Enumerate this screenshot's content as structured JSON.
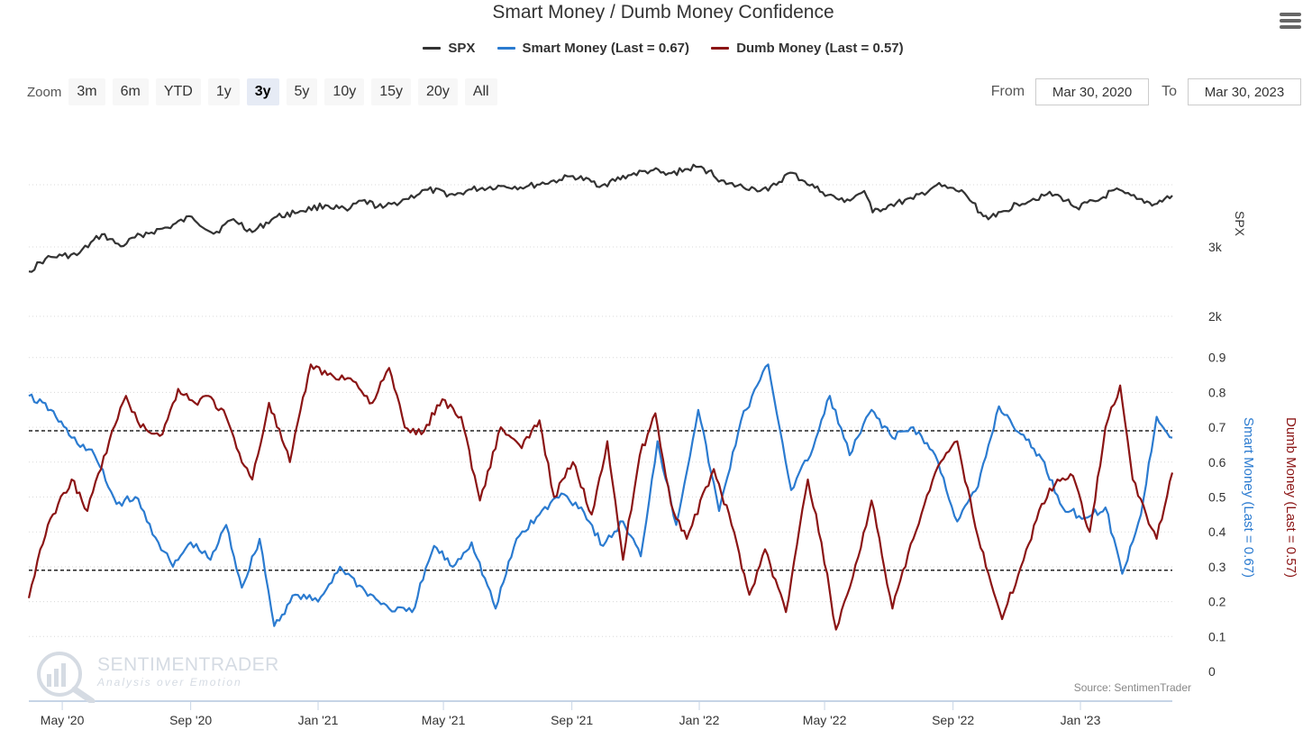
{
  "title": "Smart Money / Dumb Money Confidence",
  "legend": [
    {
      "label": "SPX",
      "color": "#333333"
    },
    {
      "label": "Smart Money (Last = 0.67)",
      "color": "#2B7BD0"
    },
    {
      "label": "Dumb Money (Last = 0.57)",
      "color": "#8B1515"
    }
  ],
  "menu": {
    "icon": "hamburger-menu-icon"
  },
  "zoom": {
    "label": "Zoom",
    "buttons": [
      "3m",
      "6m",
      "YTD",
      "1y",
      "3y",
      "5y",
      "10y",
      "15y",
      "20y",
      "All"
    ],
    "active": "3y"
  },
  "range": {
    "from_label": "From",
    "from_value": "Mar 30, 2020",
    "to_label": "To",
    "to_value": "Mar 30, 2023"
  },
  "watermark": {
    "brand": "SENTIMENTRADER",
    "tagline": "Analysis over Emotion",
    "icon": "magnifier-chart-icon"
  },
  "source": "Source: SentimenTrader",
  "chart_data": {
    "type": "line",
    "x_range": [
      "2020-03-30",
      "2023-03-30"
    ],
    "x_ticks": [
      "May '20",
      "Sep '20",
      "Jan '21",
      "May '21",
      "Sep '21",
      "Jan '22",
      "May '22",
      "Sep '22",
      "Jan '23"
    ],
    "spx_axis": {
      "label": "SPX",
      "ticks": [
        "2k",
        "3k"
      ],
      "tick_values": [
        2000,
        3000
      ],
      "scale": "log"
    },
    "confidence_axes": {
      "ticks": [
        "0",
        "0.1",
        "0.2",
        "0.3",
        "0.4",
        "0.5",
        "0.6",
        "0.7",
        "0.8",
        "0.9"
      ],
      "range": [
        0,
        1
      ],
      "smart_label": "Smart Money (Last = 0.67)",
      "dumb_label": "Dumb Money (Last = 0.57)"
    },
    "reference_lines": [
      0.69,
      0.29
    ],
    "series": [
      {
        "name": "SPX",
        "color": "#333333",
        "axis": "spx",
        "points": [
          [
            "2020-03-30",
            2600
          ],
          [
            "2020-04-15",
            2800
          ],
          [
            "2020-05-01",
            2850
          ],
          [
            "2020-05-15",
            2860
          ],
          [
            "2020-06-08",
            3230
          ],
          [
            "2020-06-26",
            3010
          ],
          [
            "2020-07-15",
            3220
          ],
          [
            "2020-08-10",
            3360
          ],
          [
            "2020-09-02",
            3580
          ],
          [
            "2020-09-23",
            3240
          ],
          [
            "2020-10-12",
            3530
          ],
          [
            "2020-10-30",
            3270
          ],
          [
            "2020-11-20",
            3560
          ],
          [
            "2020-12-15",
            3700
          ],
          [
            "2021-01-08",
            3830
          ],
          [
            "2021-01-29",
            3710
          ],
          [
            "2021-02-12",
            3930
          ],
          [
            "2021-03-04",
            3770
          ],
          [
            "2021-03-26",
            3970
          ],
          [
            "2021-04-16",
            4190
          ],
          [
            "2021-05-12",
            4060
          ],
          [
            "2021-05-28",
            4200
          ],
          [
            "2021-06-25",
            4280
          ],
          [
            "2021-07-19",
            4260
          ],
          [
            "2021-08-20",
            4440
          ],
          [
            "2021-09-02",
            4540
          ],
          [
            "2021-09-30",
            4300
          ],
          [
            "2021-10-25",
            4560
          ],
          [
            "2021-11-18",
            4700
          ],
          [
            "2021-11-30",
            4570
          ],
          [
            "2021-12-29",
            4790
          ],
          [
            "2022-01-10",
            4670
          ],
          [
            "2022-01-27",
            4330
          ],
          [
            "2022-02-23",
            4220
          ],
          [
            "2022-03-08",
            4170
          ],
          [
            "2022-03-29",
            4630
          ],
          [
            "2022-04-12",
            4400
          ],
          [
            "2022-04-29",
            4130
          ],
          [
            "2022-05-20",
            3900
          ],
          [
            "2022-06-08",
            4160
          ],
          [
            "2022-06-16",
            3670
          ],
          [
            "2022-07-01",
            3820
          ],
          [
            "2022-07-25",
            3970
          ],
          [
            "2022-08-16",
            4300
          ],
          [
            "2022-09-12",
            4110
          ],
          [
            "2022-09-30",
            3590
          ],
          [
            "2022-10-12",
            3580
          ],
          [
            "2022-11-01",
            3860
          ],
          [
            "2022-11-30",
            4080
          ],
          [
            "2022-12-13",
            4020
          ],
          [
            "2022-12-28",
            3780
          ],
          [
            "2023-01-18",
            3930
          ],
          [
            "2023-02-02",
            4180
          ],
          [
            "2023-02-24",
            3970
          ],
          [
            "2023-03-13",
            3850
          ],
          [
            "2023-03-30",
            4050
          ]
        ]
      },
      {
        "name": "Smart Money (Last = 0.67)",
        "color": "#2B7BD0",
        "axis": "smart",
        "points": [
          [
            "2020-03-30",
            0.79
          ],
          [
            "2020-04-20",
            0.75
          ],
          [
            "2020-05-10",
            0.67
          ],
          [
            "2020-06-01",
            0.62
          ],
          [
            "2020-06-22",
            0.48
          ],
          [
            "2020-07-10",
            0.5
          ],
          [
            "2020-08-01",
            0.37
          ],
          [
            "2020-08-15",
            0.3
          ],
          [
            "2020-09-01",
            0.37
          ],
          [
            "2020-09-20",
            0.32
          ],
          [
            "2020-10-05",
            0.42
          ],
          [
            "2020-10-20",
            0.24
          ],
          [
            "2020-11-06",
            0.38
          ],
          [
            "2020-11-20",
            0.13
          ],
          [
            "2020-12-10",
            0.22
          ],
          [
            "2021-01-01",
            0.2
          ],
          [
            "2021-01-22",
            0.3
          ],
          [
            "2021-02-15",
            0.23
          ],
          [
            "2021-03-10",
            0.18
          ],
          [
            "2021-04-01",
            0.17
          ],
          [
            "2021-04-22",
            0.36
          ],
          [
            "2021-05-10",
            0.3
          ],
          [
            "2021-05-28",
            0.37
          ],
          [
            "2021-06-20",
            0.18
          ],
          [
            "2021-07-10",
            0.38
          ],
          [
            "2021-08-01",
            0.45
          ],
          [
            "2021-08-22",
            0.51
          ],
          [
            "2021-09-10",
            0.47
          ],
          [
            "2021-10-01",
            0.36
          ],
          [
            "2021-10-20",
            0.43
          ],
          [
            "2021-11-06",
            0.33
          ],
          [
            "2021-11-22",
            0.66
          ],
          [
            "2021-12-10",
            0.42
          ],
          [
            "2021-12-31",
            0.75
          ],
          [
            "2022-01-20",
            0.46
          ],
          [
            "2022-02-10",
            0.72
          ],
          [
            "2022-03-08",
            0.88
          ],
          [
            "2022-03-30",
            0.52
          ],
          [
            "2022-04-20",
            0.64
          ],
          [
            "2022-05-06",
            0.79
          ],
          [
            "2022-05-25",
            0.62
          ],
          [
            "2022-06-15",
            0.75
          ],
          [
            "2022-07-05",
            0.67
          ],
          [
            "2022-07-25",
            0.7
          ],
          [
            "2022-08-15",
            0.62
          ],
          [
            "2022-09-05",
            0.43
          ],
          [
            "2022-09-25",
            0.53
          ],
          [
            "2022-10-15",
            0.76
          ],
          [
            "2022-11-05",
            0.68
          ],
          [
            "2022-11-25",
            0.61
          ],
          [
            "2022-12-15",
            0.47
          ],
          [
            "2023-01-05",
            0.44
          ],
          [
            "2023-01-25",
            0.47
          ],
          [
            "2023-02-10",
            0.28
          ],
          [
            "2023-02-28",
            0.45
          ],
          [
            "2023-03-15",
            0.73
          ],
          [
            "2023-03-30",
            0.67
          ]
        ]
      },
      {
        "name": "Dumb Money (Last = 0.57)",
        "color": "#8B1515",
        "axis": "dumb",
        "points": [
          [
            "2020-03-30",
            0.21
          ],
          [
            "2020-04-10",
            0.35
          ],
          [
            "2020-04-22",
            0.45
          ],
          [
            "2020-05-10",
            0.55
          ],
          [
            "2020-05-25",
            0.46
          ],
          [
            "2020-06-15",
            0.66
          ],
          [
            "2020-07-01",
            0.79
          ],
          [
            "2020-07-15",
            0.7
          ],
          [
            "2020-08-05",
            0.68
          ],
          [
            "2020-08-20",
            0.81
          ],
          [
            "2020-09-05",
            0.77
          ],
          [
            "2020-09-18",
            0.79
          ],
          [
            "2020-10-05",
            0.73
          ],
          [
            "2020-10-15",
            0.64
          ],
          [
            "2020-10-30",
            0.55
          ],
          [
            "2020-11-15",
            0.77
          ],
          [
            "2020-12-05",
            0.6
          ],
          [
            "2020-12-25",
            0.88
          ],
          [
            "2021-01-10",
            0.85
          ],
          [
            "2021-02-01",
            0.84
          ],
          [
            "2021-02-22",
            0.77
          ],
          [
            "2021-03-10",
            0.87
          ],
          [
            "2021-03-25",
            0.7
          ],
          [
            "2021-04-10",
            0.68
          ],
          [
            "2021-04-30",
            0.78
          ],
          [
            "2021-05-18",
            0.73
          ],
          [
            "2021-06-05",
            0.49
          ],
          [
            "2021-06-25",
            0.7
          ],
          [
            "2021-07-15",
            0.64
          ],
          [
            "2021-08-01",
            0.72
          ],
          [
            "2021-08-15",
            0.5
          ],
          [
            "2021-09-02",
            0.6
          ],
          [
            "2021-09-20",
            0.45
          ],
          [
            "2021-10-05",
            0.66
          ],
          [
            "2021-10-20",
            0.32
          ],
          [
            "2021-11-05",
            0.62
          ],
          [
            "2021-11-20",
            0.74
          ],
          [
            "2021-12-05",
            0.48
          ],
          [
            "2021-12-20",
            0.38
          ],
          [
            "2022-01-15",
            0.58
          ],
          [
            "2022-02-01",
            0.42
          ],
          [
            "2022-02-18",
            0.22
          ],
          [
            "2022-03-05",
            0.35
          ],
          [
            "2022-03-25",
            0.17
          ],
          [
            "2022-04-15",
            0.55
          ],
          [
            "2022-04-28",
            0.37
          ],
          [
            "2022-05-12",
            0.12
          ],
          [
            "2022-05-28",
            0.27
          ],
          [
            "2022-06-15",
            0.49
          ],
          [
            "2022-07-05",
            0.18
          ],
          [
            "2022-07-25",
            0.38
          ],
          [
            "2022-08-15",
            0.57
          ],
          [
            "2022-09-05",
            0.66
          ],
          [
            "2022-09-20",
            0.45
          ],
          [
            "2022-10-05",
            0.28
          ],
          [
            "2022-10-18",
            0.15
          ],
          [
            "2022-11-05",
            0.3
          ],
          [
            "2022-11-25",
            0.48
          ],
          [
            "2022-12-10",
            0.55
          ],
          [
            "2022-12-25",
            0.56
          ],
          [
            "2023-01-10",
            0.4
          ],
          [
            "2023-01-25",
            0.7
          ],
          [
            "2023-02-08",
            0.82
          ],
          [
            "2023-02-20",
            0.55
          ],
          [
            "2023-03-05",
            0.45
          ],
          [
            "2023-03-15",
            0.38
          ],
          [
            "2023-03-30",
            0.57
          ]
        ]
      }
    ]
  }
}
